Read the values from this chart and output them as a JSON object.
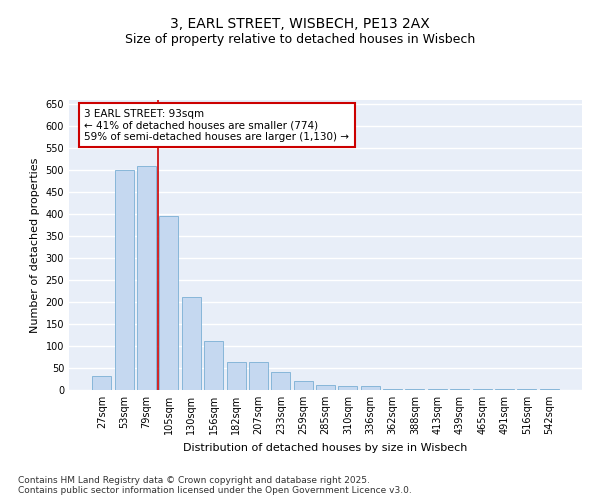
{
  "title1": "3, EARL STREET, WISBECH, PE13 2AX",
  "title2": "Size of property relative to detached houses in Wisbech",
  "xlabel": "Distribution of detached houses by size in Wisbech",
  "ylabel": "Number of detached properties",
  "categories": [
    "27sqm",
    "53sqm",
    "79sqm",
    "105sqm",
    "130sqm",
    "156sqm",
    "182sqm",
    "207sqm",
    "233sqm",
    "259sqm",
    "285sqm",
    "310sqm",
    "336sqm",
    "362sqm",
    "388sqm",
    "413sqm",
    "439sqm",
    "465sqm",
    "491sqm",
    "516sqm",
    "542sqm"
  ],
  "values": [
    33,
    500,
    510,
    395,
    212,
    112,
    63,
    63,
    40,
    20,
    12,
    8,
    8,
    2,
    2,
    2,
    2,
    2,
    2,
    2,
    2
  ],
  "bar_color": "#c5d8f0",
  "bar_edge_color": "#7aafd4",
  "vline_x": 2.5,
  "vline_color": "#cc0000",
  "annotation_text": "3 EARL STREET: 93sqm\n← 41% of detached houses are smaller (774)\n59% of semi-detached houses are larger (1,130) →",
  "annotation_box_color": "#ffffff",
  "annotation_box_edge": "#cc0000",
  "ylim": [
    0,
    660
  ],
  "yticks": [
    0,
    50,
    100,
    150,
    200,
    250,
    300,
    350,
    400,
    450,
    500,
    550,
    600,
    650
  ],
  "plot_bg_color": "#e8eef8",
  "fig_bg_color": "#ffffff",
  "grid_color": "#ffffff",
  "footer": "Contains HM Land Registry data © Crown copyright and database right 2025.\nContains public sector information licensed under the Open Government Licence v3.0.",
  "title_fontsize": 10,
  "subtitle_fontsize": 9,
  "axis_label_fontsize": 8,
  "tick_fontsize": 7,
  "annotation_fontsize": 7.5,
  "footer_fontsize": 6.5
}
